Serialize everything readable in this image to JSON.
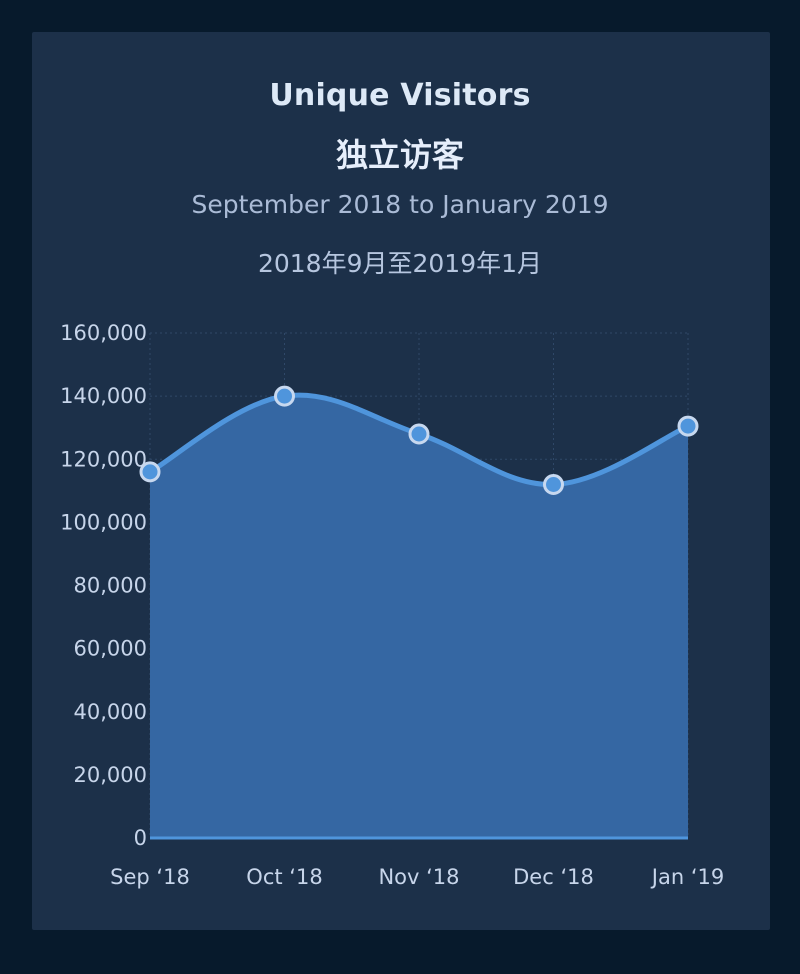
{
  "chart_data": {
    "type": "area",
    "title": "Unique Visitors",
    "title_zh": "独立访客",
    "subtitle": "September 2018 to January 2019",
    "subtitle_zh": "2018年9月至2019年1月",
    "categories": [
      "Sep ‘18",
      "Oct ‘18",
      "Nov ‘18",
      "Dec ‘18",
      "Jan ‘19"
    ],
    "series": [
      {
        "values": [
          116000,
          140000,
          128000,
          112000,
          130500
        ]
      }
    ],
    "ylim": [
      0,
      160000
    ],
    "yticks": [
      0,
      20000,
      40000,
      60000,
      80000,
      100000,
      120000,
      140000,
      160000
    ],
    "ytick_labels": [
      "0",
      "20,000",
      "40,000",
      "60,000",
      "80,000",
      "100,000",
      "120,000",
      "140,000",
      "160,000"
    ],
    "grid": true,
    "smooth": true,
    "colors": {
      "area_fill": "#3567a3",
      "line": "#4f95dc",
      "marker_fill": "#4f95dc",
      "marker_stroke": "#c7d8ef"
    }
  }
}
